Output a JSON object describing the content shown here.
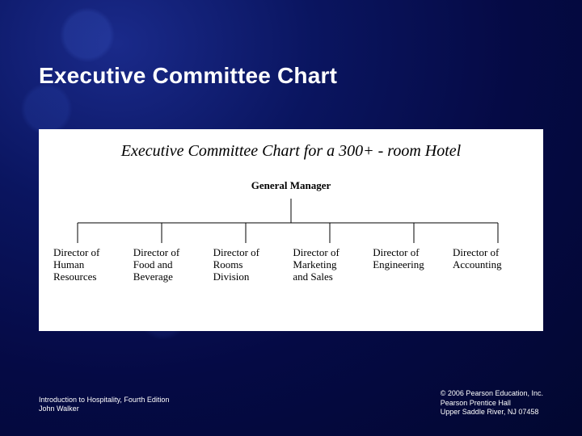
{
  "slide": {
    "title": "Executive Committee Chart",
    "title_fontsize": 28,
    "title_color": "#ffffff",
    "background_gradient": [
      "#1a2a8a",
      "#0a1560",
      "#050a45",
      "#020730"
    ]
  },
  "chart": {
    "type": "tree",
    "panel_background": "#ffffff",
    "heading": "Executive Committee Chart for a 300+ - room Hotel",
    "heading_fontsize": 20,
    "heading_font": "Times New Roman italic",
    "root": {
      "label": "General Manager",
      "fontsize": 13,
      "fontweight": 700
    },
    "line_color": "#000000",
    "line_width": 1,
    "children_fontsize": 13,
    "children": [
      {
        "label": "Director of\nHuman\nResources"
      },
      {
        "label": "Director of\nFood and\nBeverage"
      },
      {
        "label": "Director of\nRooms\nDivision"
      },
      {
        "label": "Director of\nMarketing\nand Sales"
      },
      {
        "label": "Director of\nEngineering"
      },
      {
        "label": "Director of\nAccounting"
      }
    ],
    "child_x_positions": [
      48,
      152,
      256,
      360,
      464,
      568
    ]
  },
  "footer": {
    "left": "Introduction to Hospitality, Fourth Edition\nJohn Walker",
    "right": "© 2006 Pearson Education, Inc.\nPearson Prentice Hall\nUpper Saddle River, NJ 07458",
    "fontsize": 9,
    "color": "#ffffff"
  }
}
